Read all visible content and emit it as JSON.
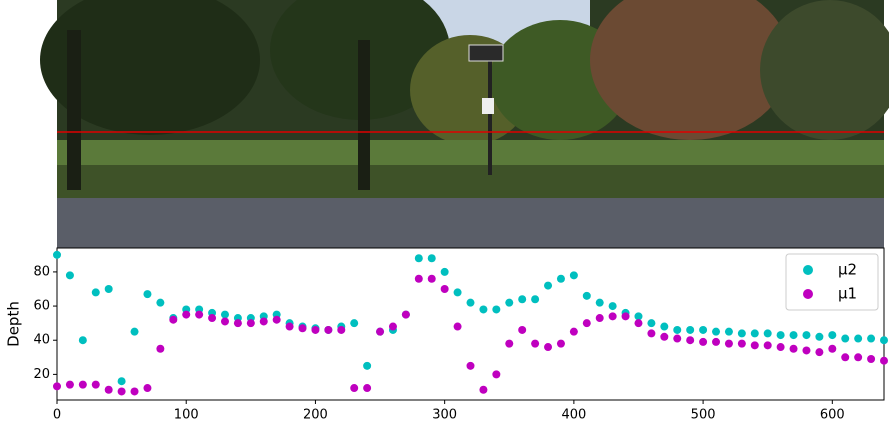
{
  "chart_data": {
    "type": "scatter",
    "ylabel": "Depth",
    "x": [
      0,
      10,
      20,
      30,
      40,
      50,
      60,
      70,
      80,
      90,
      100,
      110,
      120,
      130,
      140,
      150,
      160,
      170,
      180,
      190,
      200,
      210,
      220,
      230,
      240,
      250,
      260,
      270,
      280,
      290,
      300,
      310,
      320,
      330,
      340,
      350,
      360,
      370,
      380,
      390,
      400,
      410,
      420,
      430,
      440,
      450,
      460,
      470,
      480,
      490,
      500,
      510,
      520,
      530,
      540,
      550,
      560,
      570,
      580,
      590,
      600,
      610,
      620,
      630,
      640
    ],
    "series": [
      {
        "name": "μ2",
        "color": "#00bfbf",
        "values": [
          90,
          78,
          40,
          68,
          70,
          16,
          45,
          67,
          62,
          53,
          58,
          58,
          56,
          55,
          53,
          53,
          54,
          55,
          50,
          48,
          47,
          46,
          48,
          50,
          25,
          45,
          46,
          55,
          88,
          88,
          80,
          68,
          62,
          58,
          58,
          62,
          64,
          64,
          72,
          76,
          78,
          66,
          62,
          60,
          56,
          54,
          50,
          48,
          46,
          46,
          46,
          45,
          45,
          44,
          44,
          44,
          43,
          43,
          43,
          42,
          43,
          41,
          41,
          41,
          40
        ]
      },
      {
        "name": "μ1",
        "color": "#bf00bf",
        "values": [
          13,
          14,
          14,
          14,
          11,
          10,
          10,
          12,
          35,
          52,
          55,
          55,
          53,
          51,
          50,
          50,
          51,
          52,
          48,
          47,
          46,
          46,
          46,
          12,
          12,
          45,
          48,
          55,
          76,
          76,
          70,
          48,
          25,
          11,
          20,
          38,
          46,
          38,
          36,
          38,
          45,
          50,
          53,
          54,
          54,
          50,
          44,
          42,
          41,
          40,
          39,
          39,
          38,
          38,
          37,
          37,
          36,
          35,
          34,
          33,
          35,
          30,
          30,
          29,
          28
        ]
      }
    ],
    "xlim": [
      0,
      640
    ],
    "ylim": [
      5,
      94
    ],
    "xticks": [
      0,
      100,
      200,
      300,
      400,
      500,
      600
    ],
    "yticks": [
      20,
      40,
      60,
      80
    ],
    "legend": "upper right"
  }
}
